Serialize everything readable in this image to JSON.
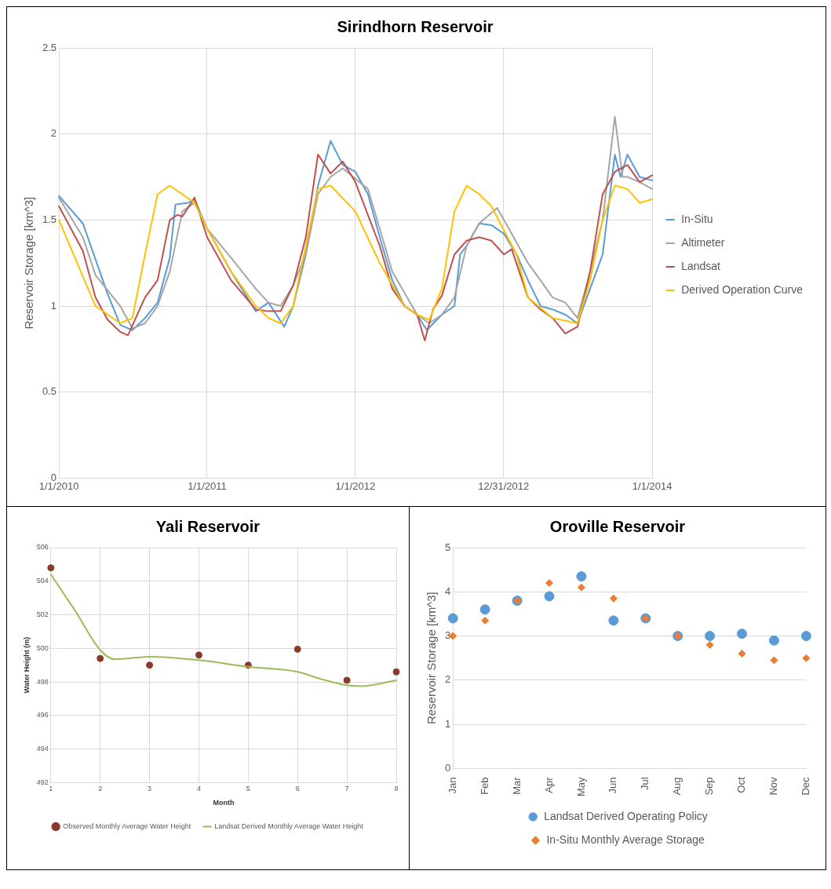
{
  "chart_data": [
    {
      "type": "line",
      "title": "Sirindhorn Reservoir",
      "ylabel": "Reservoir Storage [km^3]",
      "xlim": [
        "2010-01-01",
        "2014-01-01"
      ],
      "xticks": [
        {
          "value": "2010-01-01",
          "label": "1/1/2010"
        },
        {
          "value": "2011-01-01",
          "label": "1/1/2011"
        },
        {
          "value": "2012-01-01",
          "label": "1/1/2012"
        },
        {
          "value": "2012-12-31",
          "label": "12/31/2012"
        },
        {
          "value": "2014-01-01",
          "label": "1/1/2014"
        }
      ],
      "ylim": [
        0,
        2.5
      ],
      "yticks": [
        0,
        0.5,
        1,
        1.5,
        2,
        2.5
      ],
      "grid": true,
      "legend": "right",
      "marker": "none",
      "series": [
        {
          "name": "In-Situ",
          "color": "#5b9bd5",
          "x": [
            "2010-01-01",
            "2010-03-01",
            "2010-05-01",
            "2010-06-01",
            "2010-07-01",
            "2010-08-01",
            "2010-09-01",
            "2010-10-01",
            "2010-10-15",
            "2010-11-15",
            "2010-12-01",
            "2011-01-01",
            "2011-03-01",
            "2011-05-01",
            "2011-06-01",
            "2011-07-10",
            "2011-08-01",
            "2011-09-01",
            "2011-10-01",
            "2011-11-01",
            "2011-12-01",
            "2012-01-01",
            "2012-02-01",
            "2012-03-01",
            "2012-04-01",
            "2012-05-01",
            "2012-06-01",
            "2012-06-25",
            "2012-08-01",
            "2012-09-01",
            "2012-09-15",
            "2012-10-01",
            "2012-11-01",
            "2012-12-01",
            "2013-01-01",
            "2013-02-01",
            "2013-03-01",
            "2013-04-01",
            "2013-05-01",
            "2013-06-01",
            "2013-07-01",
            "2013-08-01",
            "2013-09-01",
            "2013-10-01",
            "2013-10-15",
            "2013-11-01",
            "2013-12-01",
            "2014-01-01"
          ],
          "values": [
            1.64,
            1.48,
            1.07,
            0.89,
            0.86,
            0.93,
            1.02,
            1.28,
            1.59,
            1.6,
            1.62,
            1.45,
            1.2,
            0.97,
            1.02,
            0.88,
            1.0,
            1.3,
            1.7,
            1.96,
            1.82,
            1.78,
            1.65,
            1.4,
            1.15,
            1.0,
            0.95,
            0.86,
            0.95,
            1.0,
            1.3,
            1.35,
            1.48,
            1.47,
            1.42,
            1.3,
            1.15,
            1.0,
            0.98,
            0.95,
            0.9,
            1.1,
            1.3,
            1.88,
            1.75,
            1.88,
            1.75,
            1.73
          ]
        },
        {
          "name": "Altimeter",
          "color": "#a5a5a5",
          "x": [
            "2010-01-01",
            "2010-03-01",
            "2010-04-01",
            "2010-06-01",
            "2010-07-01",
            "2010-08-01",
            "2010-09-01",
            "2010-10-01",
            "2010-11-01",
            "2010-12-01",
            "2011-01-01",
            "2011-03-01",
            "2011-05-01",
            "2011-06-01",
            "2011-07-01",
            "2011-08-01",
            "2011-09-01",
            "2011-10-01",
            "2011-11-01",
            "2011-12-01",
            "2012-02-01",
            "2012-03-01",
            "2012-04-01",
            "2012-06-01",
            "2012-07-01",
            "2012-08-01",
            "2012-09-01",
            "2012-10-01",
            "2012-11-01",
            "2012-12-15",
            "2013-01-01",
            "2013-03-01",
            "2013-05-01",
            "2013-06-01",
            "2013-07-01",
            "2013-08-01",
            "2013-09-01",
            "2013-10-01",
            "2013-10-20",
            "2013-11-01",
            "2013-12-01",
            "2014-01-01"
          ],
          "values": [
            1.63,
            1.4,
            1.18,
            1.0,
            0.87,
            0.9,
            1.0,
            1.2,
            1.55,
            1.6,
            1.45,
            1.28,
            1.1,
            1.02,
            1.0,
            1.12,
            1.3,
            1.65,
            1.75,
            1.8,
            1.68,
            1.45,
            1.2,
            0.95,
            0.9,
            0.95,
            1.05,
            1.35,
            1.48,
            1.57,
            1.5,
            1.25,
            1.05,
            1.02,
            0.93,
            1.2,
            1.5,
            2.1,
            1.75,
            1.75,
            1.72,
            1.68
          ]
        },
        {
          "name": "Landsat",
          "color": "#c0504d",
          "x": [
            "2010-01-01",
            "2010-03-01",
            "2010-04-01",
            "2010-05-01",
            "2010-06-01",
            "2010-06-20",
            "2010-08-01",
            "2010-09-01",
            "2010-10-01",
            "2010-10-20",
            "2010-11-01",
            "2010-12-01",
            "2011-01-01",
            "2011-03-01",
            "2011-05-01",
            "2011-06-01",
            "2011-07-01",
            "2011-08-01",
            "2011-09-01",
            "2011-10-01",
            "2011-11-01",
            "2011-12-01",
            "2012-01-01",
            "2012-03-01",
            "2012-04-01",
            "2012-05-01",
            "2012-06-01",
            "2012-06-20",
            "2012-07-10",
            "2012-08-01",
            "2012-09-01",
            "2012-10-01",
            "2012-11-01",
            "2012-12-01",
            "2013-01-01",
            "2013-01-20",
            "2013-03-01",
            "2013-04-01",
            "2013-05-01",
            "2013-06-01",
            "2013-07-01",
            "2013-08-01",
            "2013-09-01",
            "2013-10-01",
            "2013-11-01",
            "2013-12-01",
            "2014-01-01"
          ],
          "values": [
            1.58,
            1.32,
            1.05,
            0.92,
            0.85,
            0.83,
            1.05,
            1.15,
            1.5,
            1.53,
            1.52,
            1.63,
            1.4,
            1.15,
            0.98,
            0.97,
            0.97,
            1.12,
            1.4,
            1.88,
            1.77,
            1.84,
            1.72,
            1.35,
            1.1,
            1.0,
            0.95,
            0.8,
            0.98,
            1.06,
            1.3,
            1.38,
            1.4,
            1.38,
            1.3,
            1.33,
            1.05,
            0.98,
            0.93,
            0.84,
            0.88,
            1.2,
            1.65,
            1.78,
            1.82,
            1.72,
            1.76
          ]
        },
        {
          "name": "Derived Operation Curve",
          "color": "#ffc000",
          "x": [
            "2010-01-01",
            "2010-04-01",
            "2010-06-01",
            "2010-07-01",
            "2010-08-01",
            "2010-09-01",
            "2010-10-01",
            "2010-12-01",
            "2011-01-01",
            "2011-03-01",
            "2011-05-01",
            "2011-06-01",
            "2011-07-01",
            "2011-08-01",
            "2011-09-01",
            "2011-10-01",
            "2011-11-01",
            "2012-01-01",
            "2012-03-01",
            "2012-05-01",
            "2012-06-01",
            "2012-07-01",
            "2012-08-01",
            "2012-09-01",
            "2012-10-01",
            "2012-11-01",
            "2012-12-01",
            "2013-02-01",
            "2013-03-01",
            "2013-05-01",
            "2013-07-01",
            "2013-08-01",
            "2013-09-01",
            "2013-10-01",
            "2013-11-01",
            "2013-12-01",
            "2014-01-01"
          ],
          "values": [
            1.5,
            1.0,
            0.9,
            0.93,
            1.3,
            1.65,
            1.7,
            1.6,
            1.45,
            1.2,
            1.0,
            0.93,
            0.9,
            1.0,
            1.35,
            1.68,
            1.7,
            1.55,
            1.25,
            1.0,
            0.95,
            0.92,
            1.1,
            1.55,
            1.7,
            1.65,
            1.58,
            1.3,
            1.05,
            0.93,
            0.9,
            1.15,
            1.5,
            1.7,
            1.68,
            1.6,
            1.62
          ]
        }
      ]
    },
    {
      "type": "scatter",
      "title": "Yali Reservoir",
      "xlabel": "Month",
      "ylabel": "Water Height (m)",
      "xlim": [
        1,
        8
      ],
      "xticks": [
        1,
        2,
        3,
        4,
        5,
        6,
        7,
        8
      ],
      "ylim": [
        492,
        506
      ],
      "yticks": [
        492,
        494,
        496,
        498,
        500,
        502,
        504,
        506
      ],
      "grid": true,
      "legend": "bottom",
      "series": [
        {
          "name": "Observed Monthly Average Water Height",
          "color": "#8b3a2a",
          "type": "scatter",
          "marker": "circle",
          "x": [
            1,
            2,
            3,
            4,
            5,
            6,
            7,
            8
          ],
          "values": [
            504.8,
            499.4,
            499.0,
            499.6,
            499.0,
            499.95,
            498.1,
            498.6
          ]
        },
        {
          "name": "Landsat Derived Monthly Average Water Height",
          "color": "#9bbb59",
          "type": "line",
          "marker": "none",
          "x": [
            1,
            1.5,
            2,
            2.3,
            3,
            4,
            5,
            6,
            6.5,
            7,
            7.3,
            8
          ],
          "values": [
            504.4,
            502.2,
            499.9,
            499.35,
            499.5,
            499.3,
            498.9,
            498.6,
            498.15,
            497.8,
            497.75,
            498.1
          ]
        }
      ]
    },
    {
      "type": "scatter",
      "title": "Oroville Reservoir",
      "ylabel": "Reservoir Storage [km^3]",
      "categories": [
        "Jan",
        "Feb",
        "Mar",
        "Apr",
        "May",
        "Jun",
        "Jul",
        "Aug",
        "Sep",
        "Oct",
        "Nov",
        "Dec"
      ],
      "ylim": [
        0,
        5
      ],
      "yticks": [
        0,
        1,
        2,
        3,
        4,
        5
      ],
      "grid": "y",
      "legend": "bottom",
      "series": [
        {
          "name": "Landsat Derived Operating Policy",
          "color": "#5b9bd5",
          "marker": "circle",
          "values": [
            3.4,
            3.6,
            3.8,
            3.9,
            4.35,
            3.35,
            3.4,
            3.0,
            3.0,
            3.05,
            2.9,
            3.0
          ]
        },
        {
          "name": "In-Situ Monthly Average Storage",
          "color": "#ed7d31",
          "marker": "diamond",
          "values": [
            3.0,
            3.35,
            3.8,
            4.2,
            4.1,
            3.85,
            3.4,
            3.0,
            2.8,
            2.6,
            2.45,
            2.5
          ]
        }
      ]
    }
  ]
}
